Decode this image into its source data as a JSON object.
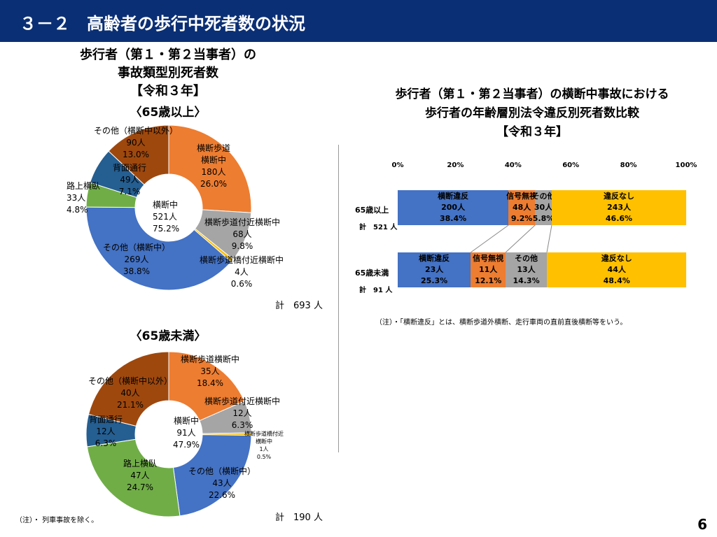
{
  "header": {
    "title": "３－２　高齢者の歩行中死者数の状況"
  },
  "left": {
    "title_lines": [
      "歩行者（第１・第２当事者）の",
      "事故類型別死者数",
      "【令和３年】"
    ]
  },
  "chart_data": [
    {
      "type": "pie",
      "title": "〈65歳以上〉",
      "center": {
        "label": "横断中",
        "count": "521人",
        "pct": "75.2%"
      },
      "total_label": "計　693 人",
      "slices": [
        {
          "name": "横断歩道横断中",
          "lines": [
            "横断歩道",
            "横断中"
          ],
          "count": "180人",
          "pct_label": "26.0%",
          "value": 26.0,
          "color": "#ed7d31"
        },
        {
          "name": "横断歩道付近横断中",
          "lines": [
            "横断歩道付近横断中"
          ],
          "count": "68人",
          "pct_label": "9.8%",
          "value": 9.8,
          "color": "#a5a5a5"
        },
        {
          "name": "横断歩道橋付近横断中",
          "lines": [
            "横断歩道橋付近横断中"
          ],
          "count": "4人",
          "pct_label": "0.6%",
          "value": 0.6,
          "color": "#ffc000"
        },
        {
          "name": "その他（横断中）",
          "lines": [
            "その他（横断中）"
          ],
          "count": "269人",
          "pct_label": "38.8%",
          "value": 38.8,
          "color": "#4472c4"
        },
        {
          "name": "路上横臥",
          "lines": [
            "路上横臥"
          ],
          "count": "33人",
          "pct_label": "4.8%",
          "value": 4.8,
          "color": "#70ad47"
        },
        {
          "name": "背面通行",
          "lines": [
            "背面通行"
          ],
          "count": "49人",
          "pct_label": "7.1%",
          "value": 7.1,
          "color": "#255e91"
        },
        {
          "name": "その他（横断中以外）",
          "lines": [
            "その他（横断中以外）"
          ],
          "count": "90人",
          "pct_label": "13.0%",
          "value": 13.0,
          "color": "#9e480e"
        }
      ]
    },
    {
      "type": "pie",
      "title": "〈65歳未満〉",
      "center": {
        "label": "横断中",
        "count": "91人",
        "pct": "47.9%"
      },
      "total_label": "計　190 人",
      "slices": [
        {
          "name": "横断歩道横断中",
          "lines": [
            "横断歩道横断中"
          ],
          "count": "35人",
          "pct_label": "18.4%",
          "value": 18.4,
          "color": "#ed7d31"
        },
        {
          "name": "横断歩道付近横断中",
          "lines": [
            "横断歩道付近横断中"
          ],
          "count": "12人",
          "pct_label": "6.3%",
          "value": 6.3,
          "color": "#a5a5a5"
        },
        {
          "name": "横断歩道橋付近横断中",
          "lines": [
            "横断歩道橋付近",
            "横断中"
          ],
          "count": "1人",
          "pct_label": "0.5%",
          "value": 0.5,
          "color": "#ffc000"
        },
        {
          "name": "その他（横断中）",
          "lines": [
            "その他（横断中）"
          ],
          "count": "43人",
          "pct_label": "22.6%",
          "value": 22.6,
          "color": "#4472c4"
        },
        {
          "name": "路上横臥",
          "lines": [
            "路上横臥"
          ],
          "count": "47人",
          "pct_label": "24.7%",
          "value": 24.7,
          "color": "#70ad47"
        },
        {
          "name": "背面通行",
          "lines": [
            "背面通行"
          ],
          "count": "12人",
          "pct_label": "6.3%",
          "value": 6.3,
          "color": "#255e91"
        },
        {
          "name": "その他（横断中以外）",
          "lines": [
            "その他（横断中以外）"
          ],
          "count": "40人",
          "pct_label": "21.1%",
          "value": 21.1,
          "color": "#9e480e"
        }
      ]
    },
    {
      "type": "bar",
      "orientation": "horizontal",
      "stacked": "percent",
      "title_lines": [
        "歩行者（第１・第２当事者）の横断中事故における",
        "歩行者の年齢層別法令違反別死者数比較",
        "【令和３年】"
      ],
      "xticks": [
        "0%",
        "20%",
        "40%",
        "60%",
        "80%",
        "100%"
      ],
      "xlim": [
        0,
        100
      ],
      "categories": [
        {
          "name": "65歳以上",
          "total": "計　521 人"
        },
        {
          "name": "65歳未満",
          "total": "計　91 人"
        }
      ],
      "series": [
        {
          "name": "横断違反",
          "color": "#4472c4",
          "values": [
            38.4,
            25.3
          ],
          "counts": [
            "200人",
            "23人"
          ],
          "pct_labels": [
            "38.4%",
            "25.3%"
          ]
        },
        {
          "name": "信号無視",
          "color": "#ed7d31",
          "values": [
            9.2,
            12.1
          ],
          "counts": [
            "48人",
            "11人"
          ],
          "pct_labels": [
            "9.2%",
            "12.1%"
          ]
        },
        {
          "name": "その他",
          "color": "#a5a5a5",
          "values": [
            5.8,
            14.3
          ],
          "counts": [
            "30人",
            "13人"
          ],
          "pct_labels": [
            "5.8%",
            "14.3%"
          ]
        },
        {
          "name": "違反なし",
          "color": "#ffc000",
          "values": [
            46.6,
            48.4
          ],
          "counts": [
            "243人",
            "44人"
          ],
          "pct_labels": [
            "46.6%",
            "48.4%"
          ]
        }
      ],
      "note": "（注）・「横断違反」とは、横断歩道外横断、走行車両の直前直後横断等をいう。"
    }
  ],
  "footer": {
    "note": "（注）・ 列車事故を除く。",
    "page": "6"
  }
}
